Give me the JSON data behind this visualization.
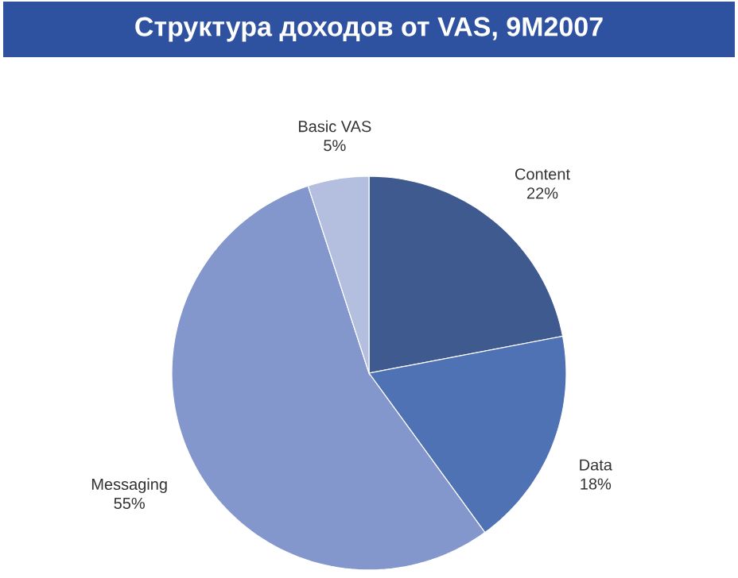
{
  "chart_data": {
    "type": "pie",
    "title": "Структура доходов от VAS, 9M2007",
    "categories": [
      "Content",
      "Data",
      "Messaging",
      "Basic VAS"
    ],
    "values": [
      22,
      18,
      55,
      5
    ],
    "value_labels": [
      "22%",
      "18%",
      "55%",
      "5%"
    ],
    "colors": [
      "#3f5a8f",
      "#4e72b4",
      "#8497cc",
      "#b4bfe0"
    ]
  }
}
